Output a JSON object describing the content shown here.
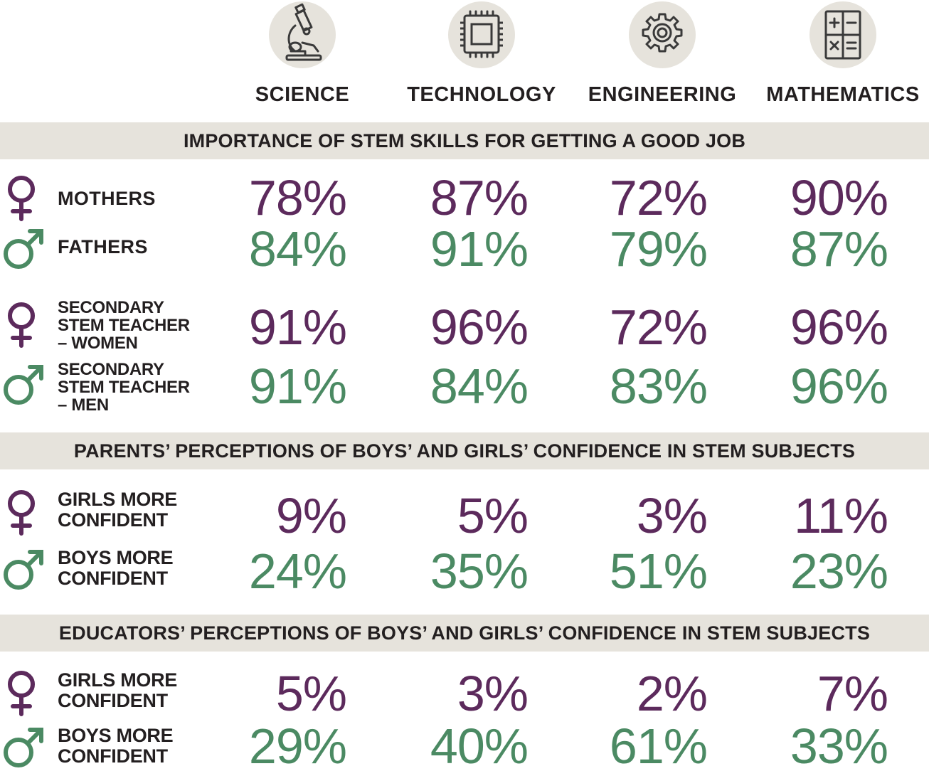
{
  "colors": {
    "female": "#5c2a5c",
    "male": "#4b8a63",
    "band": "#e6e3dc",
    "text": "#231f20"
  },
  "columns": [
    {
      "label": "SCIENCE",
      "icon": "microscope-icon"
    },
    {
      "label": "TECHNOLOGY",
      "icon": "microchip-icon"
    },
    {
      "label": "ENGINEERING",
      "icon": "gear-icon"
    },
    {
      "label": "MATHEMATICS",
      "icon": "calculator-icon"
    }
  ],
  "sections": {
    "s1": "IMPORTANCE OF STEM SKILLS FOR GETTING A GOOD JOB",
    "s2": "PARENTS’ PERCEPTIONS OF BOYS’ AND GIRLS’ CONFIDENCE IN STEM SUBJECTS",
    "s3": "EDUCATORS’ PERCEPTIONS OF BOYS’ AND GIRLS’ CONFIDENCE IN STEM SUBJECTS"
  },
  "rows": [
    {
      "label": [
        "MOTHERS"
      ],
      "gender": "female",
      "values": [
        "78%",
        "87%",
        "72%",
        "90%"
      ]
    },
    {
      "label": [
        "FATHERS"
      ],
      "gender": "male",
      "values": [
        "84%",
        "91%",
        "79%",
        "87%"
      ]
    },
    {
      "label": [
        "SECONDARY",
        "STEM TEACHER",
        "– WOMEN"
      ],
      "gender": "female",
      "values": [
        "91%",
        "96%",
        "72%",
        "96%"
      ]
    },
    {
      "label": [
        "SECONDARY",
        "STEM TEACHER",
        "– MEN"
      ],
      "gender": "male",
      "values": [
        "91%",
        "84%",
        "83%",
        "96%"
      ]
    },
    {
      "label": [
        "GIRLS MORE",
        "CONFIDENT"
      ],
      "gender": "female",
      "values": [
        "9%",
        "5%",
        "3%",
        "11%"
      ]
    },
    {
      "label": [
        "BOYS MORE",
        "CONFIDENT"
      ],
      "gender": "male",
      "values": [
        "24%",
        "35%",
        "51%",
        "23%"
      ]
    },
    {
      "label": [
        "GIRLS MORE",
        "CONFIDENT"
      ],
      "gender": "female",
      "values": [
        "5%",
        "3%",
        "2%",
        "7%"
      ]
    },
    {
      "label": [
        "BOYS MORE",
        "CONFIDENT"
      ],
      "gender": "male",
      "values": [
        "29%",
        "40%",
        "61%",
        "33%"
      ]
    }
  ],
  "chart_data": {
    "type": "table",
    "columns": [
      "SCIENCE",
      "TECHNOLOGY",
      "ENGINEERING",
      "MATHEMATICS"
    ],
    "groups": [
      {
        "title": "IMPORTANCE OF STEM SKILLS FOR GETTING A GOOD JOB",
        "rows": [
          {
            "label": "MOTHERS",
            "values": [
              78,
              87,
              72,
              90
            ]
          },
          {
            "label": "FATHERS",
            "values": [
              84,
              91,
              79,
              87
            ]
          },
          {
            "label": "SECONDARY STEM TEACHER – WOMEN",
            "values": [
              91,
              96,
              72,
              96
            ]
          },
          {
            "label": "SECONDARY STEM TEACHER – MEN",
            "values": [
              91,
              84,
              83,
              96
            ]
          }
        ]
      },
      {
        "title": "PARENTS’ PERCEPTIONS OF BOYS’ AND GIRLS’ CONFIDENCE IN STEM SUBJECTS",
        "rows": [
          {
            "label": "GIRLS MORE CONFIDENT",
            "values": [
              9,
              5,
              3,
              11
            ]
          },
          {
            "label": "BOYS MORE CONFIDENT",
            "values": [
              24,
              35,
              51,
              23
            ]
          }
        ]
      },
      {
        "title": "EDUCATORS’ PERCEPTIONS OF BOYS’ AND GIRLS’ CONFIDENCE IN STEM SUBJECTS",
        "rows": [
          {
            "label": "GIRLS MORE CONFIDENT",
            "values": [
              5,
              3,
              2,
              7
            ]
          },
          {
            "label": "BOYS MORE CONFIDENT",
            "values": [
              29,
              40,
              61,
              33
            ]
          }
        ]
      }
    ]
  }
}
